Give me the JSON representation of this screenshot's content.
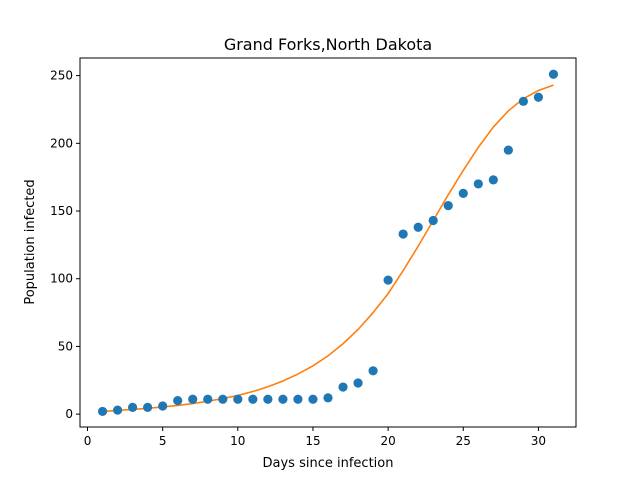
{
  "chart_data": {
    "type": "scatter",
    "title": "Grand Forks,North Dakota",
    "xlabel": "Days since infection",
    "ylabel": "Population infected",
    "xlim": [
      -0.5,
      32.5
    ],
    "ylim": [
      -9.5,
      263
    ],
    "xticks": [
      0,
      5,
      10,
      15,
      20,
      25,
      30
    ],
    "yticks": [
      0,
      50,
      100,
      150,
      200,
      250
    ],
    "grid": false,
    "legend": "none",
    "series": [
      {
        "kind": "points",
        "color": "#1f77b4",
        "x": [
          1,
          2,
          3,
          4,
          5,
          6,
          7,
          8,
          9,
          10,
          11,
          12,
          13,
          14,
          15,
          16,
          17,
          18,
          19,
          20,
          21,
          22,
          23,
          24,
          25,
          26,
          27,
          28,
          29,
          30,
          31
        ],
        "y": [
          2,
          3,
          5,
          5,
          6,
          10,
          11,
          11,
          11,
          11,
          11,
          11,
          11,
          11,
          11,
          12,
          20,
          23,
          32,
          99,
          133,
          138,
          143,
          154,
          163,
          170,
          173,
          195,
          231,
          234,
          251
        ]
      },
      {
        "kind": "line",
        "color": "#ff7f0e",
        "x": [
          1,
          2,
          3,
          4,
          5,
          6,
          7,
          8,
          9,
          10,
          11,
          12,
          13,
          14,
          15,
          16,
          17,
          18,
          19,
          20,
          21,
          22,
          23,
          24,
          25,
          26,
          27,
          28,
          29,
          30,
          31
        ],
        "y": [
          2,
          2.7,
          3.5,
          4.3,
          5.3,
          6.4,
          7.8,
          9.5,
          11.5,
          13.8,
          16.7,
          20.2,
          24.5,
          29.6,
          35.7,
          43,
          52,
          62.5,
          75,
          89,
          106,
          124,
          143,
          162,
          180,
          197,
          212,
          224,
          233,
          239,
          243
        ]
      }
    ]
  }
}
